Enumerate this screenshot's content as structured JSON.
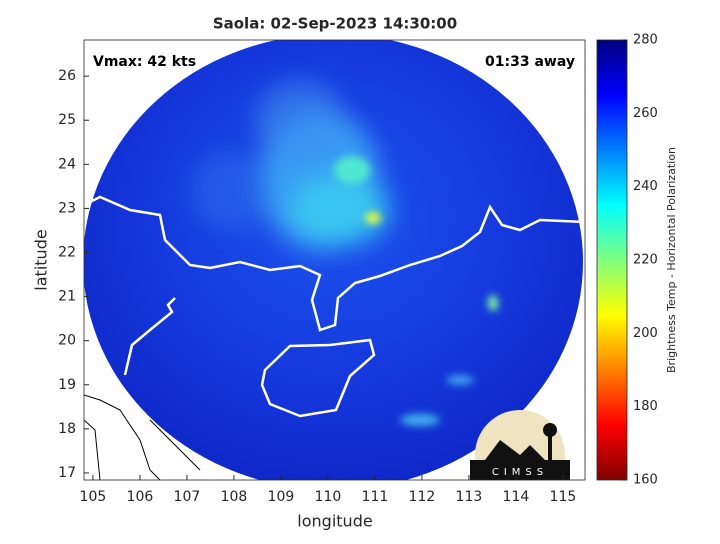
{
  "chart_data": {
    "type": "map",
    "title": "Saola: 02-Sep-2023 14:30:00",
    "annotations": [
      "Vmax: 42 kts",
      "01:33 away"
    ],
    "x_label": "longitude",
    "y_label": "latitude",
    "xlim": [
      104.81,
      115.47
    ],
    "xticks": [
      105,
      106,
      107,
      108,
      109,
      110,
      111,
      112,
      113,
      114,
      115
    ],
    "ylim": [
      16.84,
      26.82
    ],
    "yticks": [
      17,
      18,
      19,
      20,
      21,
      22,
      23,
      24,
      25,
      26
    ],
    "colorbar": {
      "label": "Brightness Temp - Horizontal Polarization",
      "lim": [
        160,
        280
      ],
      "ticks": [
        160,
        180,
        200,
        220,
        240,
        260,
        280
      ]
    },
    "logo": "CIMSS"
  }
}
